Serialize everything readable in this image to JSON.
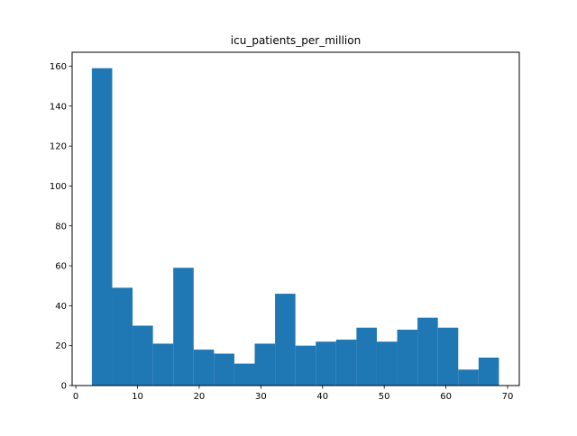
{
  "chart_data": {
    "type": "bar",
    "title": "icu_patients_per_million",
    "xlabel": "",
    "ylabel": "",
    "xlim": [
      -0.6,
      71.9
    ],
    "ylim": [
      0,
      167
    ],
    "x_ticks": [
      0,
      10,
      20,
      30,
      40,
      50,
      60,
      70
    ],
    "y_ticks": [
      0,
      20,
      40,
      60,
      80,
      100,
      120,
      140,
      160
    ],
    "bins": [
      {
        "x0": 2.6,
        "x1": 5.9,
        "count": 159
      },
      {
        "x0": 5.9,
        "x1": 9.2,
        "count": 49
      },
      {
        "x0": 9.2,
        "x1": 12.5,
        "count": 30
      },
      {
        "x0": 12.5,
        "x1": 15.8,
        "count": 21
      },
      {
        "x0": 15.8,
        "x1": 19.1,
        "count": 59
      },
      {
        "x0": 19.1,
        "x1": 22.4,
        "count": 18
      },
      {
        "x0": 22.4,
        "x1": 25.7,
        "count": 16
      },
      {
        "x0": 25.7,
        "x1": 29.0,
        "count": 11
      },
      {
        "x0": 29.0,
        "x1": 32.3,
        "count": 21
      },
      {
        "x0": 32.3,
        "x1": 35.6,
        "count": 46
      },
      {
        "x0": 35.6,
        "x1": 38.9,
        "count": 20
      },
      {
        "x0": 38.9,
        "x1": 42.2,
        "count": 22
      },
      {
        "x0": 42.2,
        "x1": 45.5,
        "count": 23
      },
      {
        "x0": 45.5,
        "x1": 48.8,
        "count": 29
      },
      {
        "x0": 48.8,
        "x1": 52.1,
        "count": 22
      },
      {
        "x0": 52.1,
        "x1": 55.4,
        "count": 28
      },
      {
        "x0": 55.4,
        "x1": 58.7,
        "count": 34
      },
      {
        "x0": 58.7,
        "x1": 62.0,
        "count": 29
      },
      {
        "x0": 62.0,
        "x1": 65.3,
        "count": 8
      },
      {
        "x0": 65.3,
        "x1": 68.6,
        "count": 14
      }
    ],
    "bar_color": "#1f77b4",
    "grid": false,
    "legend": "none"
  }
}
